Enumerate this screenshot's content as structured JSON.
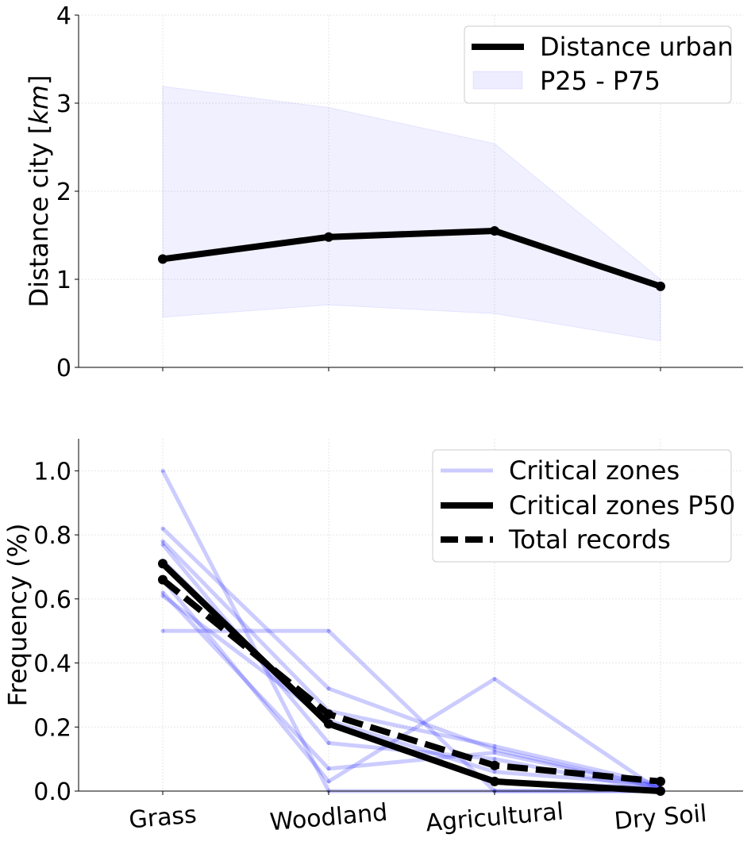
{
  "chart_data": [
    {
      "type": "line",
      "categories": [
        "Grass",
        "Woodland",
        "Agricultural",
        "Dry Soil"
      ],
      "ylabel": "Distance city [km]",
      "ylim": [
        0,
        4
      ],
      "yticks": [
        0,
        1,
        2,
        3,
        4
      ],
      "grid": true,
      "legend_position": "top-right",
      "series": [
        {
          "name": "Distance urban",
          "values": [
            1.23,
            1.48,
            1.55,
            0.92
          ],
          "color": "#000000",
          "style": "solid",
          "markers": true
        }
      ],
      "band": {
        "name": "P25 - P75",
        "lower": [
          0.57,
          0.71,
          0.61,
          0.3
        ],
        "upper": [
          3.19,
          2.95,
          2.54,
          1.0
        ],
        "color": "#0000ff"
      }
    },
    {
      "type": "line",
      "categories": [
        "Grass",
        "Woodland",
        "Agricultural",
        "Dry Soil"
      ],
      "ylabel": "Frequency (%)",
      "ylim": [
        0,
        1.1
      ],
      "yticks": [
        "0.0",
        "0.2",
        "0.4",
        "0.6",
        "0.8",
        "1.0"
      ],
      "grid": true,
      "legend_position": "top-right",
      "legend": [
        "Critical zones",
        "Critical zones P50",
        "Total records"
      ],
      "critical_zones": {
        "name": "Critical zones",
        "color": "#0000ff",
        "lines": [
          [
            1.0,
            0.0,
            0.0,
            0.0
          ],
          [
            0.82,
            0.32,
            0.13,
            0.01
          ],
          [
            0.78,
            0.25,
            0.14,
            0.02
          ],
          [
            0.77,
            0.15,
            0.1,
            0.0
          ],
          [
            0.72,
            0.21,
            0.03,
            0.01
          ],
          [
            0.66,
            0.03,
            0.35,
            0.0
          ],
          [
            0.62,
            0.07,
            0.12,
            0.01
          ],
          [
            0.61,
            0.22,
            0.06,
            0.02
          ],
          [
            0.5,
            0.5,
            0.0,
            0.0
          ]
        ]
      },
      "series": [
        {
          "name": "Critical zones P50",
          "values": [
            0.71,
            0.21,
            0.03,
            0.0
          ],
          "color": "#000000",
          "style": "solid",
          "markers": true
        },
        {
          "name": "Total records",
          "values": [
            0.66,
            0.24,
            0.08,
            0.03
          ],
          "color": "#000000",
          "style": "dashed",
          "markers": true
        }
      ]
    }
  ]
}
